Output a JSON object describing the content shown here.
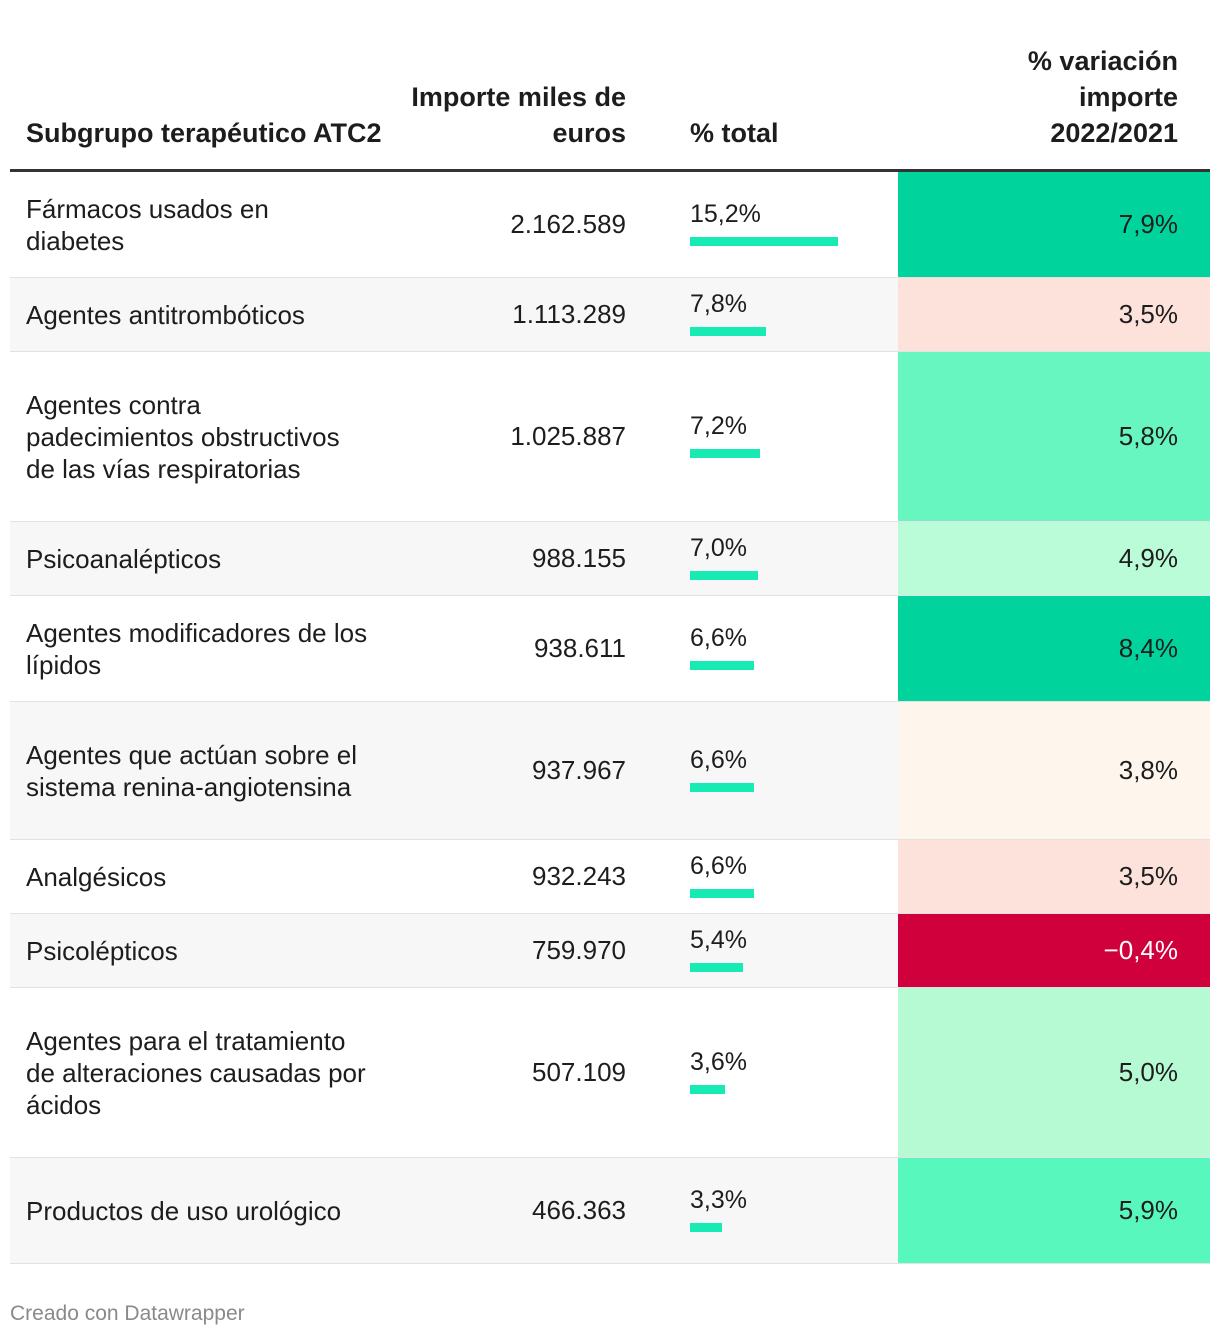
{
  "chart_data": {
    "type": "table",
    "columns": [
      "Subgrupo terapéutico ATC2",
      "Importe miles de euros",
      "% total",
      "% variación importe 2022/2021"
    ],
    "rows": [
      {
        "name": "Fármacos usados en diabetes",
        "importe": "2.162.589",
        "total": "15,2%",
        "total_value": 15.2,
        "variacion": "7,9%",
        "var_value": 7.9,
        "color": "#00d49c",
        "text_color": "#1d1d1d"
      },
      {
        "name": "Agentes antitrombóticos",
        "importe": "1.113.289",
        "total": "7,8%",
        "total_value": 7.8,
        "variacion": "3,5%",
        "var_value": 3.5,
        "color": "#fde2dc",
        "text_color": "#1d1d1d"
      },
      {
        "name": "Agentes contra padecimientos obstructivos de las vías respiratorias",
        "importe": "1.025.887",
        "total": "7,2%",
        "total_value": 7.2,
        "variacion": "5,8%",
        "var_value": 5.8,
        "color": "#67f6c0",
        "text_color": "#1d1d1d"
      },
      {
        "name": "Psicoanalépticos",
        "importe": "988.155",
        "total": "7,0%",
        "total_value": 7.0,
        "variacion": "4,9%",
        "var_value": 4.9,
        "color": "#bbfcd8",
        "text_color": "#1d1d1d"
      },
      {
        "name": "Agentes modificadores de los lípidos",
        "importe": "938.611",
        "total": "6,6%",
        "total_value": 6.6,
        "variacion": "8,4%",
        "var_value": 8.4,
        "color": "#00d49c",
        "text_color": "#1d1d1d"
      },
      {
        "name": "Agentes que actúan sobre el sistema renina-angiotensina",
        "importe": "937.967",
        "total": "6,6%",
        "total_value": 6.6,
        "variacion": "3,8%",
        "var_value": 3.8,
        "color": "#fef5ec",
        "text_color": "#1d1d1d"
      },
      {
        "name": "Analgésicos",
        "importe": "932.243",
        "total": "6,6%",
        "total_value": 6.6,
        "variacion": "3,5%",
        "var_value": 3.5,
        "color": "#fde2dc",
        "text_color": "#1d1d1d"
      },
      {
        "name": "Psicolépticos",
        "importe": "759.970",
        "total": "5,4%",
        "total_value": 5.4,
        "variacion": "−0,4%",
        "var_value": -0.4,
        "color": "#d0003c",
        "text_color": "#ffffff"
      },
      {
        "name": "Agentes para el tratamiento de alteraciones causadas por ácidos",
        "importe": "507.109",
        "total": "3,6%",
        "total_value": 3.6,
        "variacion": "5,0%",
        "var_value": 5.0,
        "color": "#b6fad4",
        "text_color": "#1d1d1d"
      },
      {
        "name": "Productos de uso urológico",
        "importe": "466.363",
        "total": "3,3%",
        "total_value": 3.3,
        "variacion": "5,9%",
        "var_value": 5.9,
        "color": "#58f7bd",
        "text_color": "#1d1d1d"
      }
    ],
    "bar_max_value": 15.2
  },
  "header": {
    "subgrupo": "Subgrupo terapéutico ATC2",
    "importe": "Importe miles de euros",
    "total": "% total",
    "variacion": "% variación importe 2022/2021"
  },
  "footer": "Creado con Datawrapper"
}
